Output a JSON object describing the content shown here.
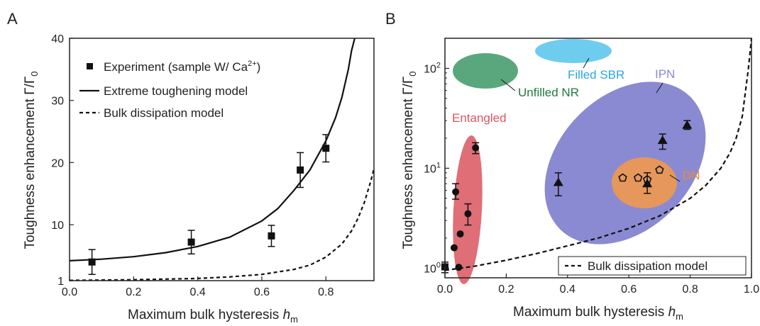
{
  "figure": {
    "panels": [
      "A",
      "B"
    ]
  },
  "chart_data": [
    {
      "panel": "A",
      "type": "scatter",
      "xlabel": "Maximum bulk hysteresis",
      "xlabel_var": "h",
      "xlabel_sub": "m",
      "ylabel": "Toughness enhancement Γ/Γ",
      "ylabel_sub": "0",
      "xlim": [
        0,
        0.95
      ],
      "ylim": [
        1,
        40
      ],
      "xticks": [
        0.0,
        0.2,
        0.4,
        0.6,
        0.8
      ],
      "xtick_labels": [
        "0.0",
        "0.2",
        "0.4",
        "0.6",
        "0.8"
      ],
      "yticks": [
        1,
        10,
        20,
        30,
        40
      ],
      "ytick_labels": [
        "1",
        "10",
        "20",
        "30",
        "40"
      ],
      "legend_position": "top-left",
      "legend": [
        {
          "marker": "square",
          "label": "Experiment (sample W/ Ca",
          "sup": "2+",
          "tail": ")"
        },
        {
          "marker": "solid-line",
          "label": "Extreme toughening model"
        },
        {
          "marker": "dashed-line",
          "label": "Bulk dissipation model"
        }
      ],
      "series": [
        {
          "name": "Experiment (sample W/ Ca2+)",
          "kind": "points",
          "points": [
            {
              "x": 0.07,
              "y": 4.0,
              "err": 2.0
            },
            {
              "x": 0.38,
              "y": 7.2,
              "err": 1.9
            },
            {
              "x": 0.63,
              "y": 8.2,
              "err": 1.7
            },
            {
              "x": 0.72,
              "y": 18.8,
              "err": 2.8
            },
            {
              "x": 0.8,
              "y": 22.3,
              "err": 2.2
            }
          ]
        },
        {
          "name": "Extreme toughening model",
          "kind": "solid-line",
          "x": [
            0.0,
            0.1,
            0.2,
            0.3,
            0.4,
            0.5,
            0.6,
            0.65,
            0.7,
            0.75,
            0.8,
            0.83,
            0.85,
            0.87,
            0.88,
            0.89
          ],
          "y": [
            4.2,
            4.45,
            4.85,
            5.5,
            6.5,
            8.0,
            10.6,
            12.6,
            15.5,
            18.8,
            23.5,
            27.2,
            30.5,
            35.0,
            38.0,
            40.0
          ]
        },
        {
          "name": "Bulk dissipation model",
          "kind": "dashed-line",
          "x": [
            0.0,
            0.2,
            0.4,
            0.5,
            0.6,
            0.7,
            0.75,
            0.8,
            0.85,
            0.88,
            0.9,
            0.92,
            0.94,
            0.95
          ],
          "y": [
            1.05,
            1.15,
            1.35,
            1.6,
            2.0,
            2.8,
            3.5,
            4.8,
            6.9,
            9.0,
            11.0,
            13.6,
            17.0,
            19.0
          ]
        }
      ]
    },
    {
      "panel": "B",
      "type": "scatter",
      "yscale": "log",
      "xlabel": "Maximum bulk hysteresis",
      "xlabel_var": "h",
      "xlabel_sub": "m",
      "ylabel": "Toughness enhancement Γ/Γ",
      "ylabel_sub": "0",
      "xlim": [
        0,
        1.0
      ],
      "ylim": [
        0.8,
        200
      ],
      "xticks": [
        0.0,
        0.2,
        0.4,
        0.6,
        0.8,
        1.0
      ],
      "xtick_labels": [
        "0.0",
        "0.2",
        "0.4",
        "0.6",
        "0.8",
        "1.0"
      ],
      "yticks": [
        1,
        10,
        100
      ],
      "ytick_base": "10",
      "ytick_exponents": [
        "0",
        "1",
        "2"
      ],
      "legend_position": "bottom-right",
      "legend": [
        {
          "marker": "dashed-line",
          "label": "Bulk dissipation model"
        }
      ],
      "regions": [
        {
          "label": "Entangled",
          "color": "#d9555f",
          "label_color": "#d9555f"
        },
        {
          "label": "Unfilled NR",
          "color": "#3e9866",
          "label_color": "#1f7a42"
        },
        {
          "label": "Filled SBR",
          "color": "#55c3ec",
          "label_color": "#2aa7e0"
        },
        {
          "label": "IPN",
          "color": "#7676ca",
          "label_color": "#8a8ad6"
        },
        {
          "label": "DN",
          "color": "#f2994a",
          "label_color": "#ee8a36"
        }
      ],
      "series": [
        {
          "name": "Entangled",
          "marker": "circle",
          "points": [
            {
              "x": 0.0,
              "y": 1.03,
              "lo": 0.9,
              "hi": 1.15,
              "marker": "square"
            },
            {
              "x": 0.03,
              "y": 1.6
            },
            {
              "x": 0.035,
              "y": 5.8,
              "lo": 4.9,
              "hi": 7.0
            },
            {
              "x": 0.045,
              "y": 1.02
            },
            {
              "x": 0.05,
              "y": 2.2
            },
            {
              "x": 0.075,
              "y": 3.5,
              "lo": 2.7,
              "hi": 4.4
            },
            {
              "x": 0.1,
              "y": 16.0,
              "lo": 14.0,
              "hi": 18.0
            }
          ]
        },
        {
          "name": "IPN",
          "marker": "triangle",
          "points": [
            {
              "x": 0.37,
              "y": 7.2,
              "lo": 5.3,
              "hi": 9.0
            },
            {
              "x": 0.66,
              "y": 7.0,
              "lo": 5.6,
              "hi": 9.0
            },
            {
              "x": 0.71,
              "y": 19.0,
              "lo": 15.5,
              "hi": 22.0
            },
            {
              "x": 0.79,
              "y": 27.0,
              "lo": 24.5,
              "hi": 30.0
            }
          ]
        },
        {
          "name": "DN",
          "marker": "pentagon",
          "points": [
            {
              "x": 0.58,
              "y": 8.0
            },
            {
              "x": 0.63,
              "y": 8.0
            },
            {
              "x": 0.66,
              "y": 7.7
            },
            {
              "x": 0.7,
              "y": 9.6
            }
          ]
        },
        {
          "name": "Bulk dissipation model",
          "kind": "dashed-line",
          "x": [
            0.0,
            0.1,
            0.2,
            0.3,
            0.4,
            0.5,
            0.6,
            0.7,
            0.8,
            0.85,
            0.9,
            0.93,
            0.95,
            0.97,
            0.99,
            1.0
          ],
          "y": [
            0.95,
            1.05,
            1.2,
            1.4,
            1.67,
            2.0,
            2.5,
            3.33,
            5.0,
            6.7,
            10.0,
            14.3,
            20.0,
            33.0,
            100.0,
            200.0
          ]
        }
      ]
    }
  ]
}
